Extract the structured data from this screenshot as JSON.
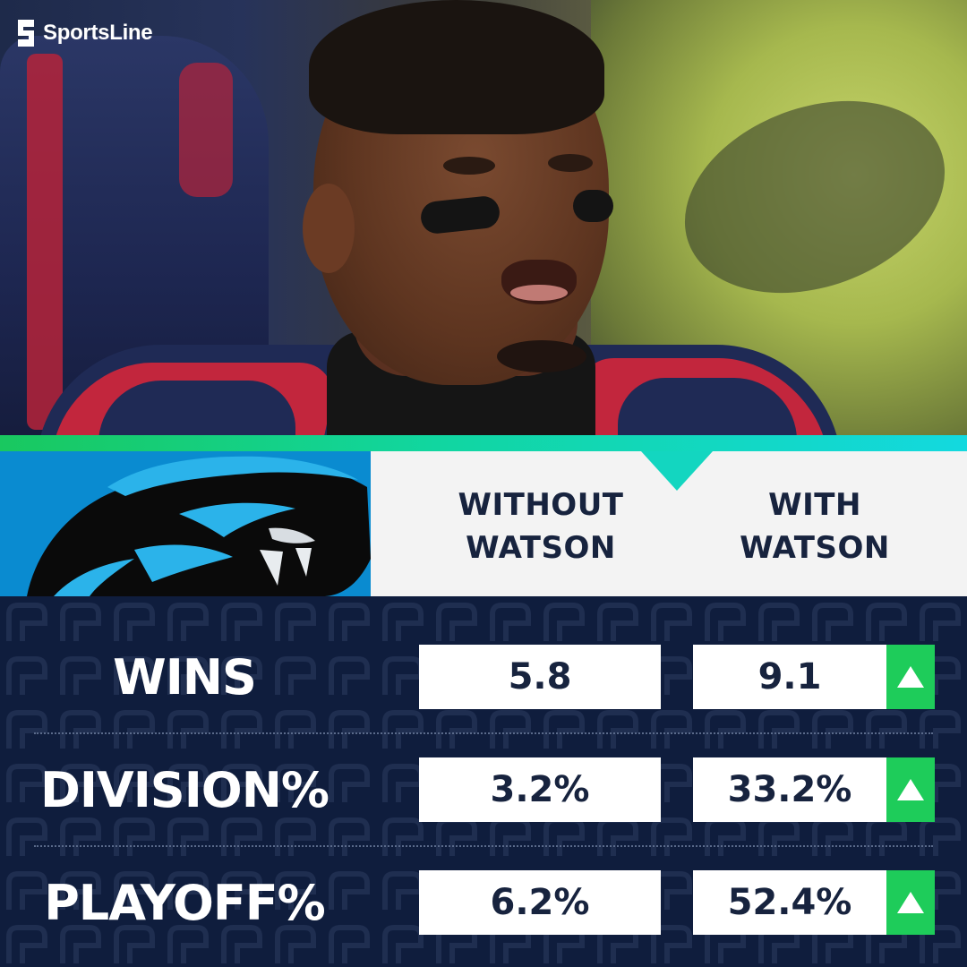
{
  "brand": {
    "name": "SportsLine"
  },
  "team": {
    "name": "Carolina Panthers",
    "logo_icon": "panther-logo-icon",
    "color": "#0a8bd0"
  },
  "columns": [
    {
      "line1": "WITHOUT",
      "line2": "WATSON"
    },
    {
      "line1": "WITH",
      "line2": "WATSON"
    }
  ],
  "rows": [
    {
      "label": "WINS",
      "without": "5.8",
      "with": "9.1",
      "trend_icon": "arrow-up-icon"
    },
    {
      "label": "DIVISION%",
      "without": "3.2%",
      "with": "33.2%",
      "trend_icon": "arrow-up-icon"
    },
    {
      "label": "PLAYOFF%",
      "without": "6.2%",
      "with": "52.4%",
      "trend_icon": "arrow-up-icon"
    }
  ],
  "colors": {
    "navy": "#0f1d3d",
    "green": "#1ecc5a",
    "teal": "#13d9df",
    "text_dark": "#17233e"
  }
}
